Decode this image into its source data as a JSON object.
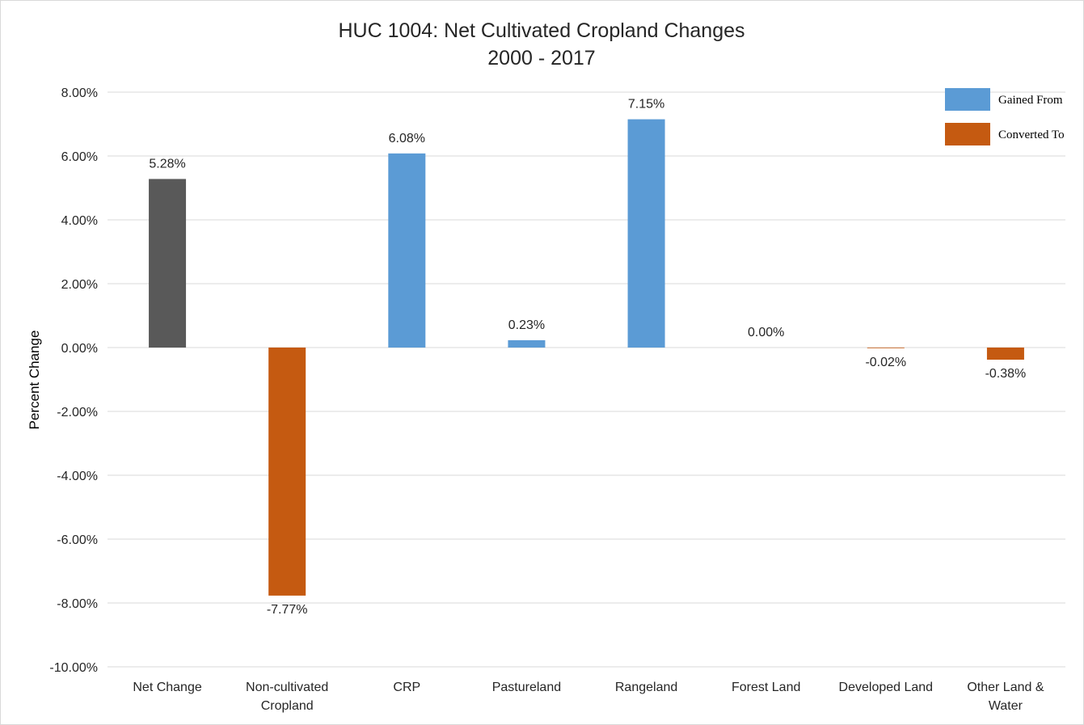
{
  "chart_data": {
    "type": "bar",
    "title_lines": [
      "HUC 1004: Net Cultivated Cropland Changes",
      "2000 - 2017"
    ],
    "xlabel": "",
    "ylabel": "Percent Change",
    "ylim": [
      -10,
      8
    ],
    "yticks": [
      8,
      6,
      4,
      2,
      0,
      -2,
      -4,
      -6,
      -8,
      -10
    ],
    "ytick_labels": [
      "8.00%",
      "6.00%",
      "4.00%",
      "2.00%",
      "0.00%",
      "-2.00%",
      "-4.00%",
      "-6.00%",
      "-8.00%",
      "-10.00%"
    ],
    "grid": true,
    "legend_position": "top-right",
    "categories": [
      [
        "Net Change"
      ],
      [
        "Non-cultivated",
        "Cropland"
      ],
      [
        "CRP"
      ],
      [
        "Pastureland"
      ],
      [
        "Rangeland"
      ],
      [
        "Forest Land"
      ],
      [
        "Developed Land"
      ],
      [
        "Other Land &",
        "Water"
      ]
    ],
    "values": [
      5.28,
      -7.77,
      6.08,
      0.23,
      7.15,
      0.0,
      -0.02,
      -0.38
    ],
    "value_labels": [
      "5.28%",
      "-7.77%",
      "6.08%",
      "0.23%",
      "7.15%",
      "0.00%",
      "-0.02%",
      "-0.38%"
    ],
    "bar_groups": [
      "net",
      "converted",
      "gained",
      "gained",
      "gained",
      "gained",
      "converted",
      "converted"
    ],
    "legend": [
      {
        "label": "Gained From",
        "group": "gained"
      },
      {
        "label": "Converted To",
        "group": "converted"
      }
    ],
    "colors": {
      "net": "#595959",
      "gained": "#5b9bd5",
      "converted": "#c55a11",
      "grid": "#d9d9d9",
      "text": "#262626"
    }
  }
}
